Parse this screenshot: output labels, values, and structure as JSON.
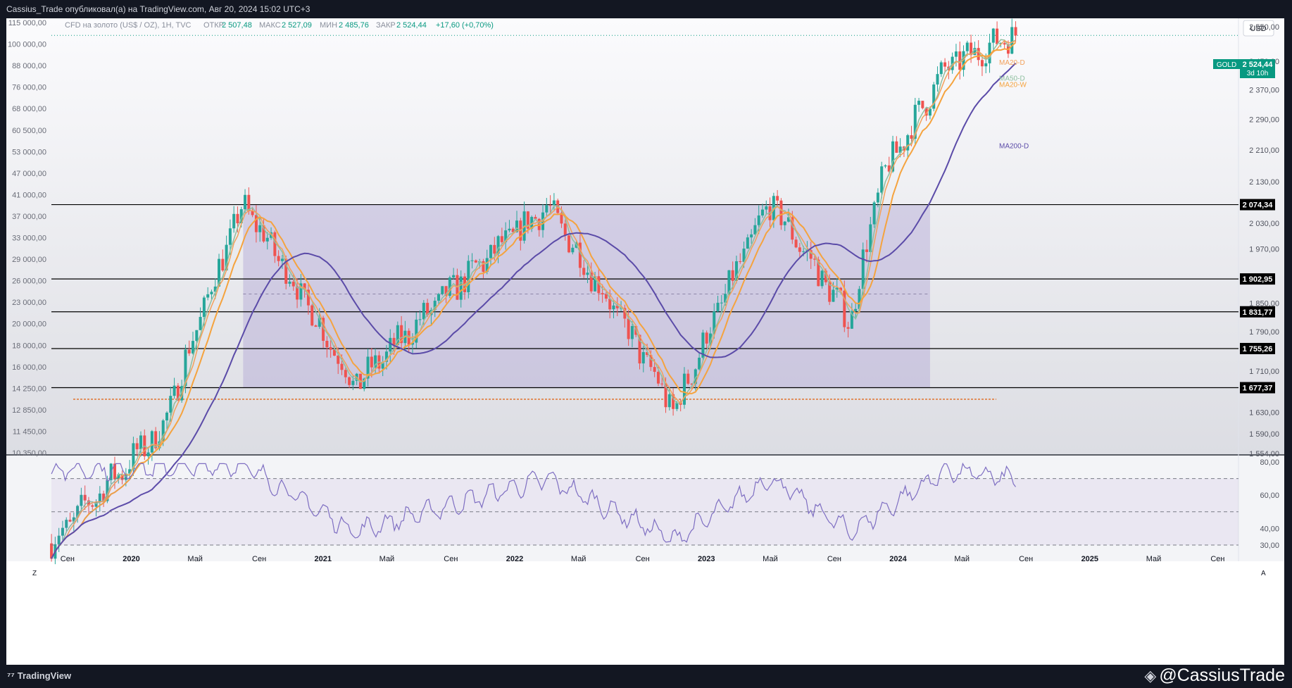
{
  "header": {
    "publisher_line": "Cassius_Trade опубликовал(а) на TradingView.com, Авг 20, 2024 15:02 UTC+3"
  },
  "legend": {
    "symbol": "CFD на золото (US$ / OZ), 1H, TVC",
    "open_label": "ОТКР",
    "open": "2 507,48",
    "high_label": "МАКС",
    "high": "2 527,09",
    "low_label": "МИН",
    "low": "2 485,76",
    "close_label": "ЗАКР",
    "close": "2 524,44",
    "change": "+17,60 (+0,70%)"
  },
  "currency_button": "USD",
  "price_tag": {
    "symbol": "GOLD",
    "price": "2 524,44",
    "countdown": "3d 10h"
  },
  "footer": {
    "brand": "TradingView",
    "watermark": "@CassiusTrade",
    "scale_auto": "A",
    "scale_zoom": "Z"
  },
  "colors": {
    "up": "#26a69a",
    "down": "#ef5350",
    "rect": "#b2a6d4",
    "ma20d": "#f2a05a",
    "ma50d": "#8fbf9f",
    "ma20w": "#f5a33e",
    "ma200d": "#5b4ba8",
    "rsi": "#7e6ec2",
    "accent": "#089981"
  },
  "chart_data": [
    {
      "type": "candlestick",
      "title": "CFD на золото (US$ / OZ), 1H, TVC",
      "x_ticks": [
        "Сен",
        "2020",
        "Май",
        "Сен",
        "2021",
        "Май",
        "Сен",
        "2022",
        "Май",
        "Сен",
        "2023",
        "Май",
        "Сен",
        "2024",
        "Май",
        "Сен",
        "2025",
        "Май",
        "Сен"
      ],
      "ylim": [
        1554,
        2575
      ],
      "right_axis_ticks": [
        "2 550,00",
        "2 450,00",
        "2 370,00",
        "2 290,00",
        "2 210,00",
        "2 130,00",
        "2 030,00",
        "1 970,00",
        "1 850,00",
        "1 790,00",
        "1 710,00",
        "1 630,00",
        "1 590,00",
        "1 554,00"
      ],
      "left_axis_ticks": [
        "115 000,00",
        "100 000,00",
        "88 000,00",
        "76 000,00",
        "68 000,00",
        "60 500,00",
        "53 000,00",
        "47 000,00",
        "41 000,00",
        "37 000,00",
        "33 000,00",
        "29 000,00",
        "26 000,00",
        "23 000,00",
        "20 000,00",
        "18 000,00",
        "16 000,00",
        "14 250,00",
        "12 850,00",
        "11 450,00",
        "10 350,00"
      ],
      "horizontal_levels": [
        "2 074,34",
        "1 902,95",
        "1 831,77",
        "1 755,26",
        "1 677,37"
      ],
      "series_labels": [
        "MA20-D",
        "MA50-D",
        "MA20-W",
        "MA200-D"
      ],
      "key_points": [
        {
          "x": "2019-08",
          "close": 1400
        },
        {
          "x": "2020-03",
          "close": 1600
        },
        {
          "x": "2020-08",
          "close": 2074
        },
        {
          "x": "2021-03",
          "close": 1680
        },
        {
          "x": "2022-03",
          "close": 2070
        },
        {
          "x": "2022-11",
          "close": 1630
        },
        {
          "x": "2023-05",
          "close": 2080
        },
        {
          "x": "2023-10",
          "close": 1810
        },
        {
          "x": "2023-12",
          "close": 2140
        },
        {
          "x": "2024-04",
          "close": 2430
        },
        {
          "x": "2024-08",
          "close": 2524.44
        }
      ],
      "range_box": {
        "top": 2074.34,
        "bottom": 1677.37,
        "from": "2020-08",
        "to": "2024-03"
      }
    },
    {
      "type": "line",
      "name": "RSI",
      "ylim": [
        30,
        80
      ],
      "y_ticks": [
        "80,00",
        "60,00",
        "40,00",
        "30,00"
      ],
      "bands": [
        70,
        50,
        30
      ],
      "key_points": [
        {
          "x": "2019-08",
          "y": 75
        },
        {
          "x": "2020-08",
          "y": 78
        },
        {
          "x": "2021-03",
          "y": 38
        },
        {
          "x": "2022-03",
          "y": 70
        },
        {
          "x": "2022-11",
          "y": 33
        },
        {
          "x": "2023-05",
          "y": 70
        },
        {
          "x": "2023-10",
          "y": 38
        },
        {
          "x": "2024-04",
          "y": 75
        },
        {
          "x": "2024-08",
          "y": 70
        }
      ]
    }
  ]
}
